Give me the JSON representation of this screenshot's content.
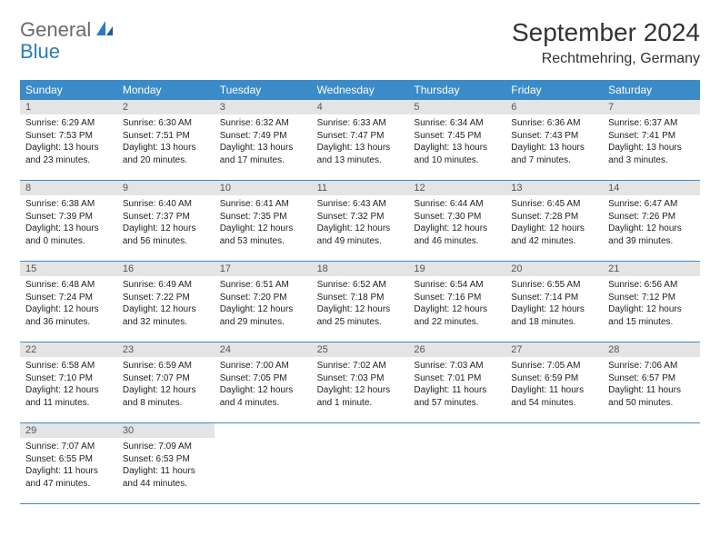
{
  "logo": {
    "text1": "General",
    "text2": "Blue"
  },
  "title": "September 2024",
  "location": "Rechtmehring, Germany",
  "colors": {
    "header_bg": "#3b8bc8",
    "header_fg": "#ffffff",
    "daynum_bg": "#e4e4e4",
    "daynum_fg": "#555555",
    "text": "#222222",
    "rule": "#3b8bc8",
    "logo_gray": "#6a6a6a",
    "logo_blue": "#2a7bbf"
  },
  "weekdays": [
    "Sunday",
    "Monday",
    "Tuesday",
    "Wednesday",
    "Thursday",
    "Friday",
    "Saturday"
  ],
  "weeks": [
    [
      {
        "n": "1",
        "sr": "Sunrise: 6:29 AM",
        "ss": "Sunset: 7:53 PM",
        "d1": "Daylight: 13 hours",
        "d2": "and 23 minutes."
      },
      {
        "n": "2",
        "sr": "Sunrise: 6:30 AM",
        "ss": "Sunset: 7:51 PM",
        "d1": "Daylight: 13 hours",
        "d2": "and 20 minutes."
      },
      {
        "n": "3",
        "sr": "Sunrise: 6:32 AM",
        "ss": "Sunset: 7:49 PM",
        "d1": "Daylight: 13 hours",
        "d2": "and 17 minutes."
      },
      {
        "n": "4",
        "sr": "Sunrise: 6:33 AM",
        "ss": "Sunset: 7:47 PM",
        "d1": "Daylight: 13 hours",
        "d2": "and 13 minutes."
      },
      {
        "n": "5",
        "sr": "Sunrise: 6:34 AM",
        "ss": "Sunset: 7:45 PM",
        "d1": "Daylight: 13 hours",
        "d2": "and 10 minutes."
      },
      {
        "n": "6",
        "sr": "Sunrise: 6:36 AM",
        "ss": "Sunset: 7:43 PM",
        "d1": "Daylight: 13 hours",
        "d2": "and 7 minutes."
      },
      {
        "n": "7",
        "sr": "Sunrise: 6:37 AM",
        "ss": "Sunset: 7:41 PM",
        "d1": "Daylight: 13 hours",
        "d2": "and 3 minutes."
      }
    ],
    [
      {
        "n": "8",
        "sr": "Sunrise: 6:38 AM",
        "ss": "Sunset: 7:39 PM",
        "d1": "Daylight: 13 hours",
        "d2": "and 0 minutes."
      },
      {
        "n": "9",
        "sr": "Sunrise: 6:40 AM",
        "ss": "Sunset: 7:37 PM",
        "d1": "Daylight: 12 hours",
        "d2": "and 56 minutes."
      },
      {
        "n": "10",
        "sr": "Sunrise: 6:41 AM",
        "ss": "Sunset: 7:35 PM",
        "d1": "Daylight: 12 hours",
        "d2": "and 53 minutes."
      },
      {
        "n": "11",
        "sr": "Sunrise: 6:43 AM",
        "ss": "Sunset: 7:32 PM",
        "d1": "Daylight: 12 hours",
        "d2": "and 49 minutes."
      },
      {
        "n": "12",
        "sr": "Sunrise: 6:44 AM",
        "ss": "Sunset: 7:30 PM",
        "d1": "Daylight: 12 hours",
        "d2": "and 46 minutes."
      },
      {
        "n": "13",
        "sr": "Sunrise: 6:45 AM",
        "ss": "Sunset: 7:28 PM",
        "d1": "Daylight: 12 hours",
        "d2": "and 42 minutes."
      },
      {
        "n": "14",
        "sr": "Sunrise: 6:47 AM",
        "ss": "Sunset: 7:26 PM",
        "d1": "Daylight: 12 hours",
        "d2": "and 39 minutes."
      }
    ],
    [
      {
        "n": "15",
        "sr": "Sunrise: 6:48 AM",
        "ss": "Sunset: 7:24 PM",
        "d1": "Daylight: 12 hours",
        "d2": "and 36 minutes."
      },
      {
        "n": "16",
        "sr": "Sunrise: 6:49 AM",
        "ss": "Sunset: 7:22 PM",
        "d1": "Daylight: 12 hours",
        "d2": "and 32 minutes."
      },
      {
        "n": "17",
        "sr": "Sunrise: 6:51 AM",
        "ss": "Sunset: 7:20 PM",
        "d1": "Daylight: 12 hours",
        "d2": "and 29 minutes."
      },
      {
        "n": "18",
        "sr": "Sunrise: 6:52 AM",
        "ss": "Sunset: 7:18 PM",
        "d1": "Daylight: 12 hours",
        "d2": "and 25 minutes."
      },
      {
        "n": "19",
        "sr": "Sunrise: 6:54 AM",
        "ss": "Sunset: 7:16 PM",
        "d1": "Daylight: 12 hours",
        "d2": "and 22 minutes."
      },
      {
        "n": "20",
        "sr": "Sunrise: 6:55 AM",
        "ss": "Sunset: 7:14 PM",
        "d1": "Daylight: 12 hours",
        "d2": "and 18 minutes."
      },
      {
        "n": "21",
        "sr": "Sunrise: 6:56 AM",
        "ss": "Sunset: 7:12 PM",
        "d1": "Daylight: 12 hours",
        "d2": "and 15 minutes."
      }
    ],
    [
      {
        "n": "22",
        "sr": "Sunrise: 6:58 AM",
        "ss": "Sunset: 7:10 PM",
        "d1": "Daylight: 12 hours",
        "d2": "and 11 minutes."
      },
      {
        "n": "23",
        "sr": "Sunrise: 6:59 AM",
        "ss": "Sunset: 7:07 PM",
        "d1": "Daylight: 12 hours",
        "d2": "and 8 minutes."
      },
      {
        "n": "24",
        "sr": "Sunrise: 7:00 AM",
        "ss": "Sunset: 7:05 PM",
        "d1": "Daylight: 12 hours",
        "d2": "and 4 minutes."
      },
      {
        "n": "25",
        "sr": "Sunrise: 7:02 AM",
        "ss": "Sunset: 7:03 PM",
        "d1": "Daylight: 12 hours",
        "d2": "and 1 minute."
      },
      {
        "n": "26",
        "sr": "Sunrise: 7:03 AM",
        "ss": "Sunset: 7:01 PM",
        "d1": "Daylight: 11 hours",
        "d2": "and 57 minutes."
      },
      {
        "n": "27",
        "sr": "Sunrise: 7:05 AM",
        "ss": "Sunset: 6:59 PM",
        "d1": "Daylight: 11 hours",
        "d2": "and 54 minutes."
      },
      {
        "n": "28",
        "sr": "Sunrise: 7:06 AM",
        "ss": "Sunset: 6:57 PM",
        "d1": "Daylight: 11 hours",
        "d2": "and 50 minutes."
      }
    ],
    [
      {
        "n": "29",
        "sr": "Sunrise: 7:07 AM",
        "ss": "Sunset: 6:55 PM",
        "d1": "Daylight: 11 hours",
        "d2": "and 47 minutes."
      },
      {
        "n": "30",
        "sr": "Sunrise: 7:09 AM",
        "ss": "Sunset: 6:53 PM",
        "d1": "Daylight: 11 hours",
        "d2": "and 44 minutes."
      },
      null,
      null,
      null,
      null,
      null
    ]
  ]
}
